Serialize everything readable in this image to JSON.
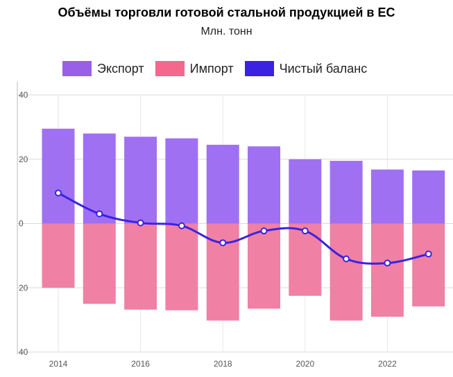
{
  "chart_data": {
    "type": "bar",
    "title": "Объёмы торговли готовой стальной продукцией в ЕС",
    "subtitle": "Млн. тонн",
    "categories": [
      "2014",
      "2015",
      "2016",
      "2017",
      "2018",
      "2019",
      "2020",
      "2021",
      "2022",
      "2023"
    ],
    "x_tick_labels": [
      "2014",
      "2016",
      "2018",
      "2020",
      "2022"
    ],
    "y_tick_labels": [
      "40",
      "20",
      "0",
      "20",
      "40"
    ],
    "ylim": [
      -40,
      40
    ],
    "series": [
      {
        "name": "Экспорт",
        "type": "bar",
        "color": "#a070f2",
        "values": [
          29.5,
          28,
          27,
          26.5,
          24.5,
          24,
          20,
          19.5,
          16.8,
          16.5
        ]
      },
      {
        "name": "Импорт",
        "type": "bar",
        "color": "#f080a4",
        "values": [
          -20,
          -25,
          -26.8,
          -27,
          -30.2,
          -26.5,
          -22.5,
          -30.2,
          -29,
          -25.8
        ]
      },
      {
        "name": "Чистый баланс",
        "type": "line",
        "color": "#3b22e0",
        "values": [
          9.5,
          3,
          0.2,
          -0.7,
          -6,
          -2.3,
          -2.3,
          -11,
          -12.3,
          -9.5
        ]
      }
    ],
    "legend": [
      {
        "label": "Экспорт",
        "color": "#9a5fe8"
      },
      {
        "label": "Импорт",
        "color": "#f4688e"
      },
      {
        "label": "Чистый баланс",
        "color": "#3b22e0"
      }
    ]
  }
}
